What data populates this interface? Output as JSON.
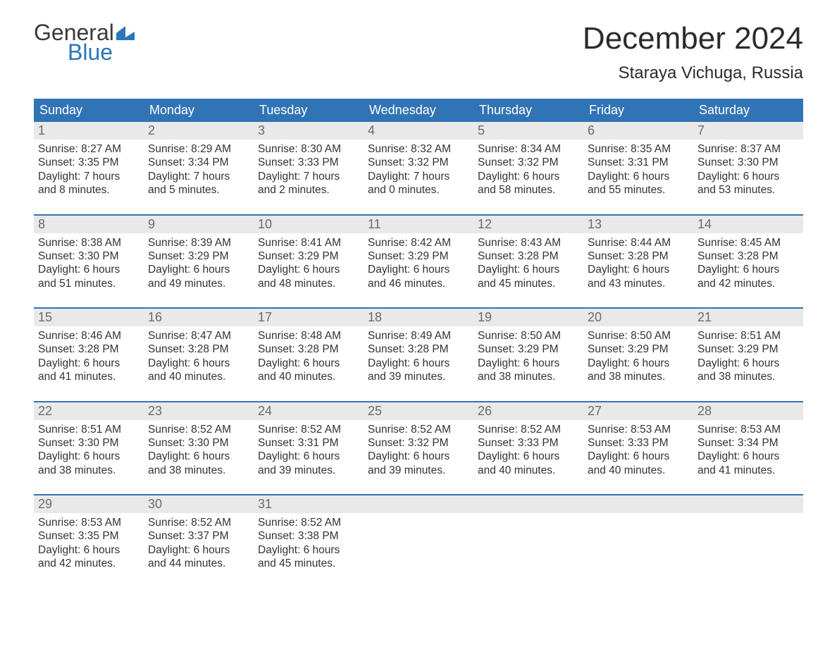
{
  "logo": {
    "general": "General",
    "blue": "Blue"
  },
  "title": "December 2024",
  "location": "Staraya Vichuga, Russia",
  "colors": {
    "header_bg": "#3174b5",
    "header_text": "#ffffff",
    "daynum_bg": "#e9e9e9",
    "daynum_text": "#6b6b6b",
    "body_text": "#333333",
    "accent_line": "#3174b5",
    "logo_blue": "#2a76b8",
    "page_bg": "#ffffff"
  },
  "typography": {
    "title_fontsize": 44,
    "location_fontsize": 24,
    "header_fontsize": 18,
    "daynum_fontsize": 18,
    "body_fontsize": 15.5,
    "logo_fontsize": 32
  },
  "day_names": [
    "Sunday",
    "Monday",
    "Tuesday",
    "Wednesday",
    "Thursday",
    "Friday",
    "Saturday"
  ],
  "labels": {
    "sunrise": "Sunrise:",
    "sunset": "Sunset:",
    "daylight": "Daylight:"
  },
  "weeks": [
    [
      {
        "n": "1",
        "sunrise": "8:27 AM",
        "sunset": "3:35 PM",
        "dl1": "7 hours",
        "dl2": "and 8 minutes."
      },
      {
        "n": "2",
        "sunrise": "8:29 AM",
        "sunset": "3:34 PM",
        "dl1": "7 hours",
        "dl2": "and 5 minutes."
      },
      {
        "n": "3",
        "sunrise": "8:30 AM",
        "sunset": "3:33 PM",
        "dl1": "7 hours",
        "dl2": "and 2 minutes."
      },
      {
        "n": "4",
        "sunrise": "8:32 AM",
        "sunset": "3:32 PM",
        "dl1": "7 hours",
        "dl2": "and 0 minutes."
      },
      {
        "n": "5",
        "sunrise": "8:34 AM",
        "sunset": "3:32 PM",
        "dl1": "6 hours",
        "dl2": "and 58 minutes."
      },
      {
        "n": "6",
        "sunrise": "8:35 AM",
        "sunset": "3:31 PM",
        "dl1": "6 hours",
        "dl2": "and 55 minutes."
      },
      {
        "n": "7",
        "sunrise": "8:37 AM",
        "sunset": "3:30 PM",
        "dl1": "6 hours",
        "dl2": "and 53 minutes."
      }
    ],
    [
      {
        "n": "8",
        "sunrise": "8:38 AM",
        "sunset": "3:30 PM",
        "dl1": "6 hours",
        "dl2": "and 51 minutes."
      },
      {
        "n": "9",
        "sunrise": "8:39 AM",
        "sunset": "3:29 PM",
        "dl1": "6 hours",
        "dl2": "and 49 minutes."
      },
      {
        "n": "10",
        "sunrise": "8:41 AM",
        "sunset": "3:29 PM",
        "dl1": "6 hours",
        "dl2": "and 48 minutes."
      },
      {
        "n": "11",
        "sunrise": "8:42 AM",
        "sunset": "3:29 PM",
        "dl1": "6 hours",
        "dl2": "and 46 minutes."
      },
      {
        "n": "12",
        "sunrise": "8:43 AM",
        "sunset": "3:28 PM",
        "dl1": "6 hours",
        "dl2": "and 45 minutes."
      },
      {
        "n": "13",
        "sunrise": "8:44 AM",
        "sunset": "3:28 PM",
        "dl1": "6 hours",
        "dl2": "and 43 minutes."
      },
      {
        "n": "14",
        "sunrise": "8:45 AM",
        "sunset": "3:28 PM",
        "dl1": "6 hours",
        "dl2": "and 42 minutes."
      }
    ],
    [
      {
        "n": "15",
        "sunrise": "8:46 AM",
        "sunset": "3:28 PM",
        "dl1": "6 hours",
        "dl2": "and 41 minutes."
      },
      {
        "n": "16",
        "sunrise": "8:47 AM",
        "sunset": "3:28 PM",
        "dl1": "6 hours",
        "dl2": "and 40 minutes."
      },
      {
        "n": "17",
        "sunrise": "8:48 AM",
        "sunset": "3:28 PM",
        "dl1": "6 hours",
        "dl2": "and 40 minutes."
      },
      {
        "n": "18",
        "sunrise": "8:49 AM",
        "sunset": "3:28 PM",
        "dl1": "6 hours",
        "dl2": "and 39 minutes."
      },
      {
        "n": "19",
        "sunrise": "8:50 AM",
        "sunset": "3:29 PM",
        "dl1": "6 hours",
        "dl2": "and 38 minutes."
      },
      {
        "n": "20",
        "sunrise": "8:50 AM",
        "sunset": "3:29 PM",
        "dl1": "6 hours",
        "dl2": "and 38 minutes."
      },
      {
        "n": "21",
        "sunrise": "8:51 AM",
        "sunset": "3:29 PM",
        "dl1": "6 hours",
        "dl2": "and 38 minutes."
      }
    ],
    [
      {
        "n": "22",
        "sunrise": "8:51 AM",
        "sunset": "3:30 PM",
        "dl1": "6 hours",
        "dl2": "and 38 minutes."
      },
      {
        "n": "23",
        "sunrise": "8:52 AM",
        "sunset": "3:30 PM",
        "dl1": "6 hours",
        "dl2": "and 38 minutes."
      },
      {
        "n": "24",
        "sunrise": "8:52 AM",
        "sunset": "3:31 PM",
        "dl1": "6 hours",
        "dl2": "and 39 minutes."
      },
      {
        "n": "25",
        "sunrise": "8:52 AM",
        "sunset": "3:32 PM",
        "dl1": "6 hours",
        "dl2": "and 39 minutes."
      },
      {
        "n": "26",
        "sunrise": "8:52 AM",
        "sunset": "3:33 PM",
        "dl1": "6 hours",
        "dl2": "and 40 minutes."
      },
      {
        "n": "27",
        "sunrise": "8:53 AM",
        "sunset": "3:33 PM",
        "dl1": "6 hours",
        "dl2": "and 40 minutes."
      },
      {
        "n": "28",
        "sunrise": "8:53 AM",
        "sunset": "3:34 PM",
        "dl1": "6 hours",
        "dl2": "and 41 minutes."
      }
    ],
    [
      {
        "n": "29",
        "sunrise": "8:53 AM",
        "sunset": "3:35 PM",
        "dl1": "6 hours",
        "dl2": "and 42 minutes."
      },
      {
        "n": "30",
        "sunrise": "8:52 AM",
        "sunset": "3:37 PM",
        "dl1": "6 hours",
        "dl2": "and 44 minutes."
      },
      {
        "n": "31",
        "sunrise": "8:52 AM",
        "sunset": "3:38 PM",
        "dl1": "6 hours",
        "dl2": "and 45 minutes."
      },
      {
        "empty": true
      },
      {
        "empty": true
      },
      {
        "empty": true
      },
      {
        "empty": true
      }
    ]
  ]
}
